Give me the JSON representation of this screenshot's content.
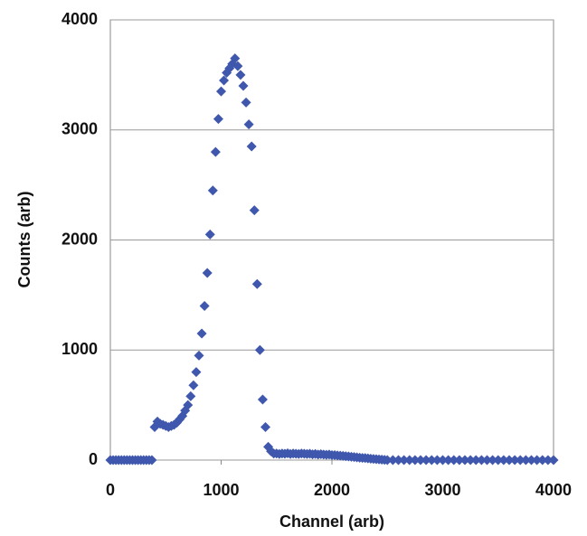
{
  "chart_data": {
    "type": "scatter",
    "x_label": "Channel (arb)",
    "y_label": "Counts (arb)",
    "xlim": [
      0,
      4000
    ],
    "xticks": [
      0,
      1000,
      2000,
      3000,
      4000
    ],
    "ylim": [
      0,
      4000
    ],
    "yticks": [
      0,
      1000,
      2000,
      3000,
      4000
    ],
    "grid": true,
    "color": "#3f57ad",
    "x": [
      0,
      25,
      50,
      75,
      100,
      125,
      150,
      175,
      200,
      225,
      250,
      275,
      300,
      325,
      350,
      375,
      400,
      425,
      450,
      475,
      500,
      525,
      550,
      575,
      600,
      625,
      650,
      675,
      700,
      725,
      750,
      775,
      800,
      825,
      850,
      875,
      900,
      925,
      950,
      975,
      1000,
      1025,
      1050,
      1075,
      1100,
      1125,
      1150,
      1175,
      1200,
      1225,
      1250,
      1275,
      1300,
      1325,
      1350,
      1375,
      1400,
      1425,
      1450,
      1475,
      1500,
      1525,
      1550,
      1575,
      1600,
      1625,
      1650,
      1675,
      1700,
      1725,
      1750,
      1775,
      1800,
      1825,
      1850,
      1875,
      1900,
      1925,
      1950,
      1975,
      2000,
      2025,
      2050,
      2075,
      2100,
      2125,
      2150,
      2175,
      2200,
      2225,
      2250,
      2275,
      2300,
      2325,
      2350,
      2375,
      2400,
      2425,
      2450,
      2475,
      2500,
      2550,
      2600,
      2650,
      2700,
      2750,
      2800,
      2850,
      2900,
      2950,
      3000,
      3050,
      3100,
      3150,
      3200,
      3250,
      3300,
      3350,
      3400,
      3450,
      3500,
      3550,
      3600,
      3650,
      3700,
      3750,
      3800,
      3850,
      3900,
      3950,
      4000
    ],
    "values": [
      0,
      0,
      0,
      0,
      0,
      0,
      0,
      0,
      0,
      0,
      0,
      0,
      0,
      0,
      0,
      0,
      300,
      350,
      330,
      320,
      310,
      300,
      310,
      320,
      340,
      370,
      400,
      450,
      500,
      580,
      680,
      800,
      950,
      1150,
      1400,
      1700,
      2050,
      2450,
      2800,
      3100,
      3350,
      3450,
      3520,
      3560,
      3600,
      3650,
      3580,
      3500,
      3400,
      3250,
      3050,
      2850,
      2270,
      1600,
      1000,
      550,
      300,
      120,
      80,
      60,
      60,
      55,
      60,
      58,
      62,
      55,
      60,
      58,
      55,
      60,
      57,
      55,
      58,
      52,
      55,
      50,
      53,
      50,
      48,
      50,
      45,
      45,
      42,
      40,
      38,
      35,
      33,
      30,
      28,
      25,
      22,
      20,
      18,
      15,
      12,
      10,
      8,
      6,
      4,
      2,
      0,
      0,
      0,
      0,
      0,
      0,
      0,
      0,
      0,
      0,
      0,
      0,
      0,
      0,
      0,
      0,
      0,
      0,
      0,
      0,
      0,
      0,
      0,
      0,
      0,
      0,
      0,
      0,
      0,
      0,
      0
    ]
  }
}
